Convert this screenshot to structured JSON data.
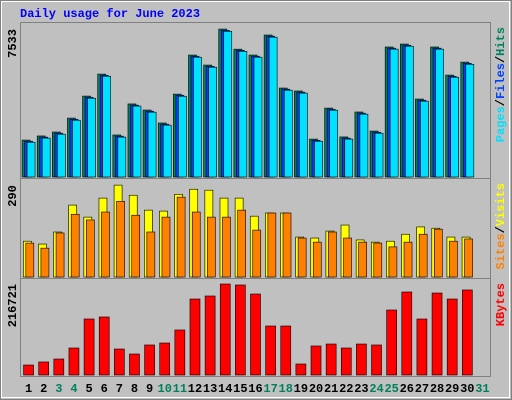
{
  "chart_data": [
    {
      "type": "bar",
      "title": "Daily usage for June 2023",
      "legend_separator": "/",
      "ylim": [
        0,
        7740
      ],
      "yticks": [
        7533
      ],
      "series": [
        {
          "name": "Hits",
          "color": "#00805c",
          "values": [
            1880,
            2090,
            2290,
            3000,
            4120,
            5240,
            2140,
            3720,
            3410,
            2750,
            4220,
            6210,
            5700,
            7533,
            6510,
            6210,
            7230,
            4530,
            4380,
            1930,
            3510,
            2040,
            3310,
            2340,
            6620,
            6770,
            3970,
            6620,
            5190,
            5850,
            null
          ]
        },
        {
          "name": "Files",
          "color": "#0040ff",
          "values": [
            1820,
            2030,
            2230,
            2940,
            4060,
            5180,
            2080,
            3660,
            3350,
            2690,
            4160,
            6150,
            5640,
            7470,
            6450,
            6150,
            7170,
            4470,
            4320,
            1870,
            3450,
            1980,
            3250,
            2280,
            6560,
            6710,
            3910,
            6560,
            5130,
            5790,
            null
          ]
        },
        {
          "name": "Pages",
          "color": "#00e0ff",
          "values": [
            1770,
            1980,
            2180,
            2890,
            4010,
            5130,
            2030,
            3610,
            3300,
            2640,
            4110,
            6100,
            5590,
            7420,
            6400,
            6100,
            7120,
            4420,
            4270,
            1820,
            3400,
            1930,
            3200,
            2230,
            6510,
            6660,
            3860,
            6510,
            5080,
            5740,
            null
          ]
        }
      ]
    },
    {
      "type": "bar",
      "legend_separator": "/",
      "ylim": [
        0,
        303
      ],
      "yticks": [
        290
      ],
      "series": [
        {
          "name": "Visits",
          "color": "#ffff00",
          "values": [
            113,
            104,
            142,
            227,
            189,
            249,
            290,
            258,
            211,
            208,
            261,
            277,
            274,
            249,
            249,
            192,
            202,
            202,
            126,
            123,
            145,
            164,
            117,
            110,
            113,
            135,
            158,
            154,
            126,
            126,
            null
          ]
        },
        {
          "name": "Sites",
          "color": "#ff8000",
          "values": [
            107,
            91,
            139,
            198,
            180,
            205,
            239,
            195,
            142,
            189,
            252,
            205,
            189,
            189,
            211,
            148,
            202,
            202,
            123,
            110,
            142,
            123,
            110,
            107,
            95,
            110,
            135,
            151,
            113,
            120,
            null
          ]
        }
      ]
    },
    {
      "type": "bar",
      "ylim": [
        0,
        223900
      ],
      "yticks": [
        216721
      ],
      "categories": [
        "1",
        "2",
        "3",
        "4",
        "5",
        "6",
        "7",
        "8",
        "9",
        "10",
        "11",
        "12",
        "13",
        "14",
        "15",
        "16",
        "17",
        "18",
        "19",
        "20",
        "21",
        "22",
        "23",
        "24",
        "25",
        "26",
        "27",
        "28",
        "29",
        "30",
        "31"
      ],
      "x_label_colors": [
        "#000000",
        "#000000",
        "#00805c",
        "#00805c",
        "#000000",
        "#000000",
        "#000000",
        "#000000",
        "#000000",
        "#00805c",
        "#00805c",
        "#000000",
        "#000000",
        "#000000",
        "#000000",
        "#000000",
        "#00805c",
        "#00805c",
        "#000000",
        "#000000",
        "#000000",
        "#000000",
        "#000000",
        "#00805c",
        "#00805c",
        "#000000",
        "#000000",
        "#000000",
        "#000000",
        "#000000",
        "#00805c"
      ],
      "series": [
        {
          "name": "KBytes",
          "color": "#ff0000",
          "values": [
            23800,
            31000,
            38100,
            64300,
            133400,
            138200,
            61900,
            50000,
            71500,
            76200,
            107200,
            181000,
            188200,
            216721,
            214400,
            192900,
            116700,
            116700,
            26200,
            69100,
            73800,
            64300,
            73800,
            71500,
            154800,
            197700,
            133400,
            195300,
            181000,
            202500,
            null
          ]
        }
      ]
    }
  ]
}
